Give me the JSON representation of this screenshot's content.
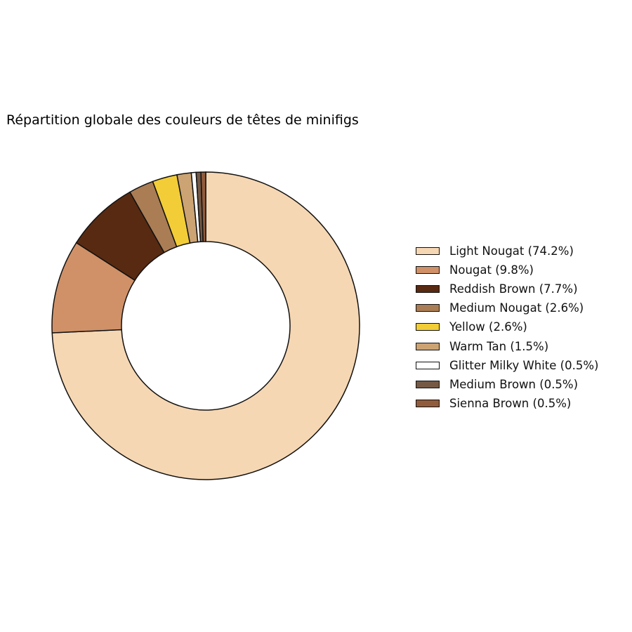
{
  "chart_data": {
    "type": "pie",
    "style": "donut",
    "title": "Répartition globale des couleurs de têtes de minifigs",
    "legend_placement": "right",
    "start_angle_deg": 90,
    "direction": "clockwise",
    "slices": [
      {
        "label": "Light Nougat",
        "value": 74.2,
        "legend": "Light Nougat (74.2%)",
        "color": "#F6D7B3"
      },
      {
        "label": "Nougat",
        "value": 9.8,
        "legend": "Nougat (9.8%)",
        "color": "#D09168"
      },
      {
        "label": "Reddish Brown",
        "value": 7.7,
        "legend": "Reddish Brown (7.7%)",
        "color": "#582A12"
      },
      {
        "label": "Medium Nougat",
        "value": 2.6,
        "legend": "Medium Nougat (2.6%)",
        "color": "#AA7D55"
      },
      {
        "label": "Yellow",
        "value": 2.6,
        "legend": "Yellow (2.6%)",
        "color": "#F2CD37"
      },
      {
        "label": "Warm Tan",
        "value": 1.5,
        "legend": "Warm Tan (1.5%)",
        "color": "#CCA373"
      },
      {
        "label": "Glitter Milky White",
        "value": 0.5,
        "legend": "Glitter Milky White (0.5%)",
        "color": "#FFFFFF"
      },
      {
        "label": "Medium Brown",
        "value": 0.5,
        "legend": "Medium Brown (0.5%)",
        "color": "#755945"
      },
      {
        "label": "Sienna Brown",
        "value": 0.5,
        "legend": "Sienna Brown (0.5%)",
        "color": "#915C3C"
      }
    ]
  }
}
